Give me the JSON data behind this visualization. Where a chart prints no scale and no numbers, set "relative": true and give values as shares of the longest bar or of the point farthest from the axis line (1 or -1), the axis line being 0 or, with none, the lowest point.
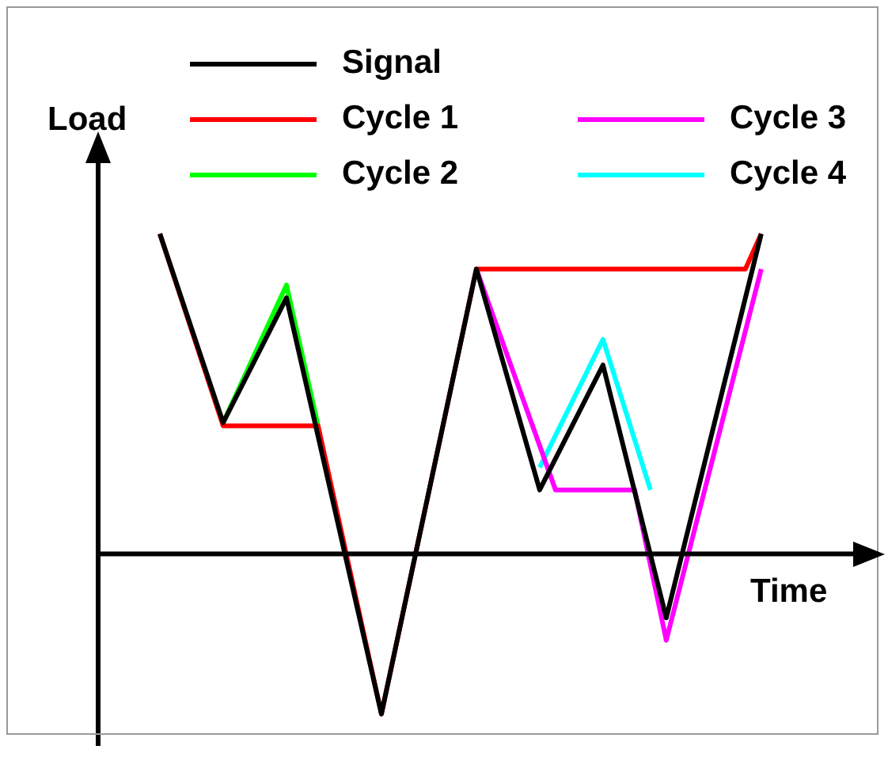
{
  "chart_data": {
    "type": "line",
    "relative": true,
    "xlabel": "Time",
    "ylabel": "Load",
    "legend": "top",
    "marker": "none",
    "line_style": "solid",
    "categories": [
      null,
      null,
      null,
      null,
      null,
      null,
      null,
      null,
      null,
      null,
      null,
      null,
      null,
      null,
      null,
      null,
      null,
      null,
      null,
      null,
      null,
      null,
      null,
      null,
      null,
      null,
      null,
      null,
      null,
      null,
      null,
      null,
      null,
      null,
      null,
      null,
      null,
      null,
      null
    ],
    "series": [
      {
        "name": "Signal",
        "color": "#000000",
        "values": [
          1,
          null,
          null,
          null,
          0.41,
          null,
          null,
          null,
          0.8,
          null,
          null,
          null,
          null,
          null,
          -0.5,
          null,
          null,
          null,
          null,
          null,
          0.89,
          null,
          null,
          null,
          0.2,
          null,
          null,
          null,
          0.59,
          null,
          null,
          null,
          -0.2,
          null,
          null,
          null,
          null,
          null,
          1
        ]
      },
      {
        "name": "Cycle 1",
        "color": "#ff0000",
        "values": [
          1,
          null,
          null,
          null,
          0.4,
          null,
          null,
          null,
          null,
          null,
          0.4,
          null,
          null,
          null,
          -0.5,
          null,
          null,
          null,
          null,
          null,
          0.89,
          null,
          null,
          null,
          null,
          null,
          null,
          null,
          null,
          null,
          null,
          null,
          null,
          null,
          null,
          null,
          null,
          0.89,
          1
        ]
      },
      {
        "name": "Cycle 2",
        "color": "#00ff00",
        "values": [
          null,
          null,
          null,
          null,
          0.41,
          null,
          null,
          null,
          0.84,
          null,
          0.4,
          null,
          null,
          null,
          null,
          null,
          null,
          null,
          null,
          null,
          null,
          null,
          null,
          null,
          null,
          null,
          null,
          null,
          null,
          null,
          null,
          null,
          null,
          null,
          null,
          null,
          null,
          null,
          null
        ]
      },
      {
        "name": "Cycle 3",
        "color": "#ff00ff",
        "values": [
          null,
          null,
          null,
          null,
          null,
          null,
          null,
          null,
          null,
          null,
          null,
          null,
          null,
          null,
          null,
          null,
          null,
          null,
          null,
          null,
          0.89,
          null,
          null,
          null,
          null,
          0.2,
          null,
          null,
          null,
          null,
          0.2,
          null,
          -0.27,
          null,
          null,
          null,
          null,
          null,
          0.89
        ]
      },
      {
        "name": "Cycle 4",
        "color": "#00ffff",
        "values": [
          null,
          null,
          null,
          null,
          null,
          null,
          null,
          null,
          null,
          null,
          null,
          null,
          null,
          null,
          null,
          null,
          null,
          null,
          null,
          null,
          null,
          null,
          null,
          null,
          0.27,
          null,
          null,
          null,
          0.67,
          null,
          null,
          0.2,
          null,
          null,
          null,
          null,
          null,
          null,
          null
        ]
      }
    ]
  }
}
